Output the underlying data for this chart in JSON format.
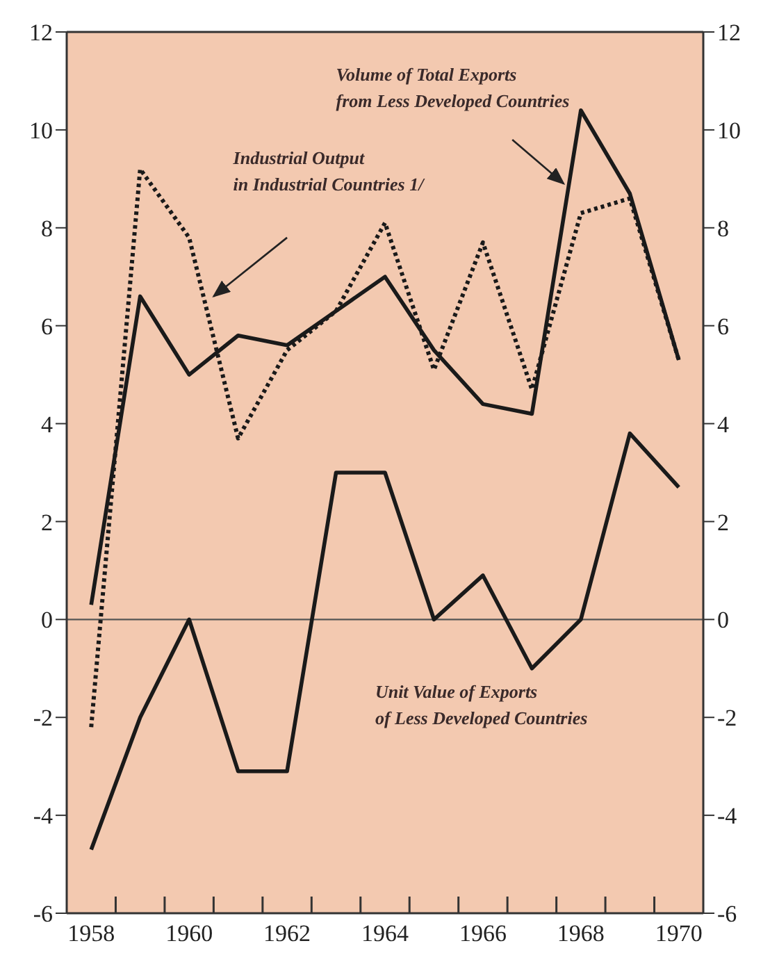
{
  "chart_data": {
    "type": "line",
    "categories": [
      "1958",
      null,
      "1960",
      null,
      "1962",
      null,
      "1964",
      null,
      "1966",
      null,
      "1968",
      null,
      "1970"
    ],
    "series": [
      {
        "name": "Volume of Total Exports from Less Developed Countries",
        "color": "#1a1a1a",
        "line_style": "solid",
        "values": [
          0.3,
          6.6,
          5.0,
          5.8,
          5.6,
          6.3,
          7.0,
          5.5,
          4.4,
          4.2,
          10.4,
          8.7,
          5.3
        ]
      },
      {
        "name": "Industrial Output in Industrial Countries 1/",
        "color": "#1a1a1a",
        "line_style": "dotted",
        "values": [
          -2.2,
          9.2,
          7.8,
          3.7,
          5.5,
          6.3,
          8.1,
          5.1,
          7.7,
          4.7,
          8.3,
          8.6,
          5.3
        ]
      },
      {
        "name": "Unit Value of Exports of Less Developed Countries",
        "color": "#1a1a1a",
        "line_style": "solid",
        "values": [
          -4.7,
          -2.0,
          0.0,
          -3.1,
          -3.1,
          3.0,
          3.0,
          0.0,
          0.9,
          -1.0,
          0.0,
          3.8,
          2.7
        ]
      }
    ],
    "ylim": [
      -6,
      12
    ],
    "yticks": [
      -6,
      -4,
      -2,
      0,
      2,
      4,
      6,
      8,
      10,
      12
    ],
    "y2lim": [
      -6,
      12
    ],
    "y2ticks": [
      -6,
      -4,
      -2,
      0,
      2,
      4,
      6,
      8,
      10,
      12
    ],
    "ref_lines": [
      {
        "axis": "y",
        "value": 0,
        "color": "#555555"
      }
    ],
    "grid": false,
    "legend": false,
    "marker": "none"
  }
}
